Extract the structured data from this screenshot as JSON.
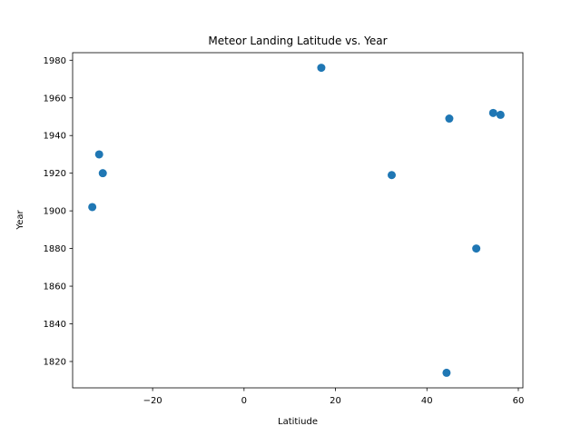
{
  "chart_data": {
    "type": "scatter",
    "title": "Meteor Landing Latitude vs. Year",
    "xlabel": "Latitiude",
    "ylabel": "Year",
    "xlim": [
      -37.5,
      61
    ],
    "ylim": [
      1806,
      1984
    ],
    "xticks": [
      -20,
      0,
      20,
      40,
      60
    ],
    "yticks": [
      1820,
      1840,
      1860,
      1880,
      1900,
      1920,
      1940,
      1960,
      1980
    ],
    "grid": false,
    "marker_color": "#1f77b4",
    "points": [
      {
        "x": 16.9,
        "y": 1976
      },
      {
        "x": 44.9,
        "y": 1949
      },
      {
        "x": 54.5,
        "y": 1952
      },
      {
        "x": 56.1,
        "y": 1951
      },
      {
        "x": -31.7,
        "y": 1930
      },
      {
        "x": -30.9,
        "y": 1920
      },
      {
        "x": 32.3,
        "y": 1919
      },
      {
        "x": -33.2,
        "y": 1902
      },
      {
        "x": 50.8,
        "y": 1880
      },
      {
        "x": 44.3,
        "y": 1814
      }
    ]
  }
}
